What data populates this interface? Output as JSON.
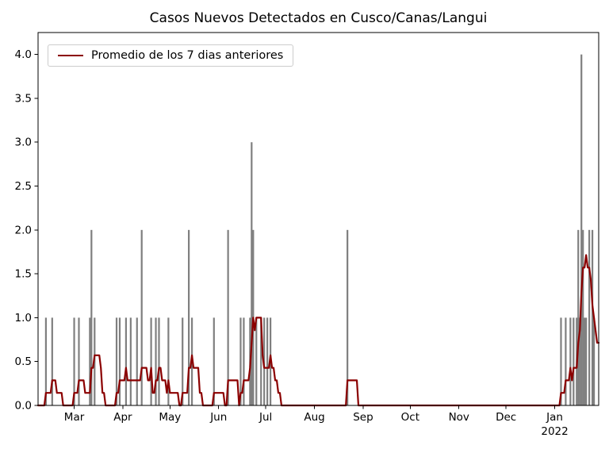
{
  "chart_data": {
    "type": "bar",
    "title": "Casos Nuevos Detectados en Cusco/Canas/Langui",
    "line_legend": "Promedio de los 7 dias anteriores",
    "line_rule": "rolling_mean_7_days_of_daily_cases",
    "x_start": "2021-02-06",
    "x_end": "2022-01-29",
    "ylim": [
      0,
      4.25
    ],
    "yticks": [
      0,
      0.5,
      1,
      1.5,
      2,
      2.5,
      3,
      3.5,
      4
    ],
    "xticks": [
      {
        "date": "2021-03-01",
        "label": "Mar"
      },
      {
        "date": "2021-04-01",
        "label": "Apr"
      },
      {
        "date": "2021-05-01",
        "label": "May"
      },
      {
        "date": "2021-06-01",
        "label": "Jun"
      },
      {
        "date": "2021-07-01",
        "label": "Jul"
      },
      {
        "date": "2021-08-01",
        "label": "Aug"
      },
      {
        "date": "2021-09-01",
        "label": "Sep"
      },
      {
        "date": "2021-10-01",
        "label": "Oct"
      },
      {
        "date": "2021-11-01",
        "label": "Nov"
      },
      {
        "date": "2021-12-01",
        "label": "Dec"
      },
      {
        "date": "2022-01-01",
        "label": "Jan",
        "sublabel": "2022"
      }
    ],
    "colors": {
      "bar": "#7f7f7f",
      "line": "#8b0000",
      "axis": "#000000",
      "background": "#ffffff",
      "legend_border": "#cccccc"
    },
    "daily_cases": [
      {
        "date": "2021-02-11",
        "value": 1
      },
      {
        "date": "2021-02-15",
        "value": 1
      },
      {
        "date": "2021-03-01",
        "value": 1
      },
      {
        "date": "2021-03-04",
        "value": 1
      },
      {
        "date": "2021-03-11",
        "value": 1
      },
      {
        "date": "2021-03-12",
        "value": 2
      },
      {
        "date": "2021-03-14",
        "value": 1
      },
      {
        "date": "2021-03-28",
        "value": 1
      },
      {
        "date": "2021-03-30",
        "value": 1
      },
      {
        "date": "2021-04-03",
        "value": 1
      },
      {
        "date": "2021-04-06",
        "value": 1
      },
      {
        "date": "2021-04-10",
        "value": 1
      },
      {
        "date": "2021-04-13",
        "value": 2
      },
      {
        "date": "2021-04-19",
        "value": 1
      },
      {
        "date": "2021-04-22",
        "value": 1
      },
      {
        "date": "2021-04-24",
        "value": 1
      },
      {
        "date": "2021-04-30",
        "value": 1
      },
      {
        "date": "2021-05-09",
        "value": 1
      },
      {
        "date": "2021-05-13",
        "value": 2
      },
      {
        "date": "2021-05-15",
        "value": 1
      },
      {
        "date": "2021-05-29",
        "value": 1
      },
      {
        "date": "2021-06-07",
        "value": 2
      },
      {
        "date": "2021-06-15",
        "value": 1
      },
      {
        "date": "2021-06-17",
        "value": 1
      },
      {
        "date": "2021-06-21",
        "value": 1
      },
      {
        "date": "2021-06-22",
        "value": 3
      },
      {
        "date": "2021-06-23",
        "value": 2
      },
      {
        "date": "2021-06-25",
        "value": 1
      },
      {
        "date": "2021-06-28",
        "value": 1
      },
      {
        "date": "2021-06-30",
        "value": 1
      },
      {
        "date": "2021-07-02",
        "value": 1
      },
      {
        "date": "2021-07-04",
        "value": 1
      },
      {
        "date": "2021-08-22",
        "value": 2
      },
      {
        "date": "2022-01-05",
        "value": 1
      },
      {
        "date": "2022-01-08",
        "value": 1
      },
      {
        "date": "2022-01-11",
        "value": 1
      },
      {
        "date": "2022-01-13",
        "value": 1
      },
      {
        "date": "2022-01-15",
        "value": 1
      },
      {
        "date": "2022-01-16",
        "value": 2
      },
      {
        "date": "2022-01-17",
        "value": 1
      },
      {
        "date": "2022-01-18",
        "value": 4
      },
      {
        "date": "2022-01-19",
        "value": 2
      },
      {
        "date": "2022-01-20",
        "value": 1
      },
      {
        "date": "2022-01-21",
        "value": 1
      },
      {
        "date": "2022-01-23",
        "value": 2
      },
      {
        "date": "2022-01-25",
        "value": 2
      },
      {
        "date": "2022-01-26",
        "value": 1
      }
    ]
  }
}
